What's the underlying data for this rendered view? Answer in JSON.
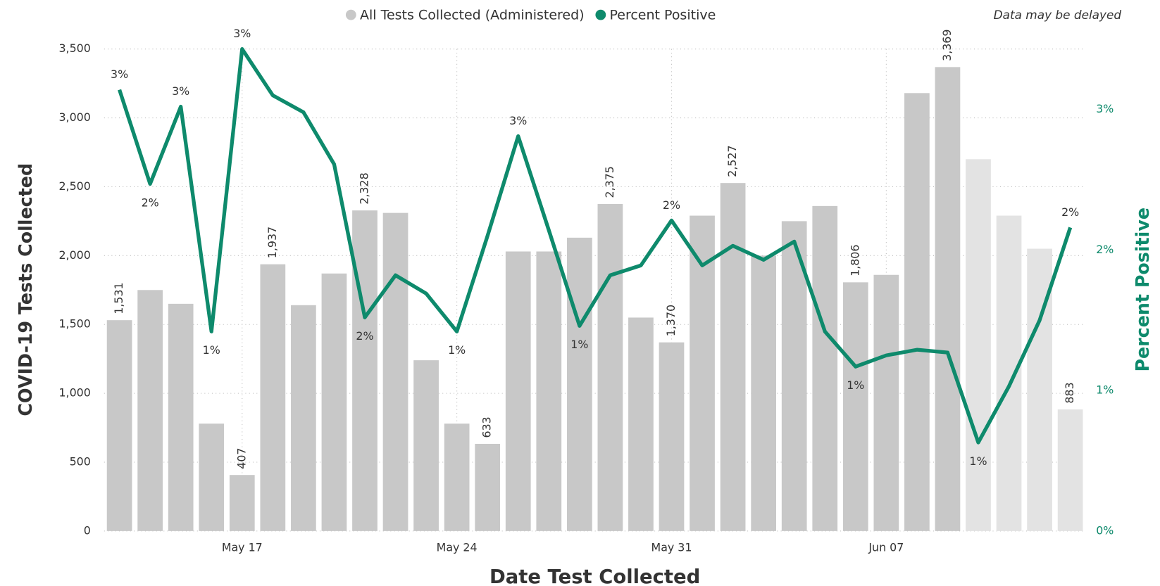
{
  "chart_data": {
    "type": "bar_line",
    "note": "Data may be delayed",
    "x_label": "Date Test Collected",
    "y_label": "COVID-19 Tests Collected",
    "y2_label": "Percent Positive",
    "categories": [
      null,
      null,
      null,
      null,
      "May 17",
      null,
      null,
      null,
      null,
      null,
      null,
      "May 24",
      null,
      null,
      null,
      null,
      null,
      null,
      "May 31",
      null,
      null,
      null,
      null,
      null,
      null,
      "Jun 07",
      null,
      null,
      null,
      null,
      null,
      null
    ],
    "series": [
      {
        "name": "All Tests Collected (Administered)",
        "type": "bar",
        "color": "#c8c8c8",
        "colors": [
          "#c8c8c8",
          "#c8c8c8",
          "#c8c8c8",
          "#c8c8c8",
          "#c8c8c8",
          "#c8c8c8",
          "#c8c8c8",
          "#c8c8c8",
          "#c8c8c8",
          "#c8c8c8",
          "#c8c8c8",
          "#c8c8c8",
          "#c8c8c8",
          "#c8c8c8",
          "#c8c8c8",
          "#c8c8c8",
          "#c8c8c8",
          "#c8c8c8",
          "#c8c8c8",
          "#c8c8c8",
          "#c8c8c8",
          "#c8c8c8",
          "#c8c8c8",
          "#c8c8c8",
          "#c8c8c8",
          "#c8c8c8",
          "#c8c8c8",
          "#c8c8c8",
          "#e3e3e3",
          "#e3e3e3",
          "#e3e3e3",
          "#e3e3e3"
        ],
        "values": [
          1531,
          1750,
          1650,
          780,
          407,
          1937,
          1640,
          1870,
          2328,
          2310,
          1240,
          780,
          633,
          2030,
          2030,
          2130,
          2375,
          1550,
          1370,
          2290,
          2527,
          2000,
          2250,
          2360,
          1806,
          1860,
          3180,
          3369,
          2700,
          2290,
          2050,
          883
        ],
        "value_labels": [
          "1,531",
          null,
          null,
          null,
          "407",
          "1,937",
          null,
          null,
          "2,328",
          null,
          null,
          null,
          "633",
          null,
          null,
          null,
          "2,375",
          null,
          "1,370",
          null,
          "2,527",
          null,
          null,
          null,
          "1,806",
          null,
          null,
          "3,369",
          null,
          null,
          null,
          "883"
        ]
      },
      {
        "name": "Percent Positive",
        "type": "line",
        "axis": "y2",
        "color": "#0e8a6c",
        "values": [
          3.14,
          2.47,
          3.02,
          1.42,
          3.43,
          3.1,
          2.98,
          2.61,
          1.52,
          1.82,
          1.69,
          1.42,
          2.1,
          2.81,
          2.14,
          1.46,
          1.82,
          1.89,
          2.21,
          1.89,
          2.03,
          1.93,
          2.06,
          1.42,
          1.17,
          1.25,
          1.29,
          1.27,
          0.63,
          1.03,
          1.5,
          2.16
        ],
        "value_labels": [
          "3%",
          "2%",
          "3%",
          "1%",
          "3%",
          null,
          null,
          null,
          "2%",
          null,
          null,
          "1%",
          null,
          "3%",
          null,
          "1%",
          null,
          null,
          "2%",
          null,
          null,
          null,
          null,
          null,
          "1%",
          null,
          null,
          null,
          "1%",
          null,
          null,
          "2%"
        ]
      }
    ],
    "ylim": [
      0,
      3500
    ],
    "yticks": [
      0,
      500,
      {
        "value": 1000,
        "label": "1,000"
      },
      {
        "value": 1500,
        "label": "1,500"
      },
      {
        "value": 2000,
        "label": "2,000"
      },
      {
        "value": 2500,
        "label": "2,500"
      },
      {
        "value": 3000,
        "label": "3,000"
      },
      {
        "value": 3500,
        "label": "3,500"
      }
    ],
    "y2lim": [
      0,
      3.43
    ],
    "y2ticks": [
      {
        "value": 0,
        "label": "0%"
      },
      {
        "value": 1,
        "label": "1%"
      },
      {
        "value": 2,
        "label": "2%"
      },
      {
        "value": 3,
        "label": "3%"
      }
    ],
    "grid": true
  }
}
